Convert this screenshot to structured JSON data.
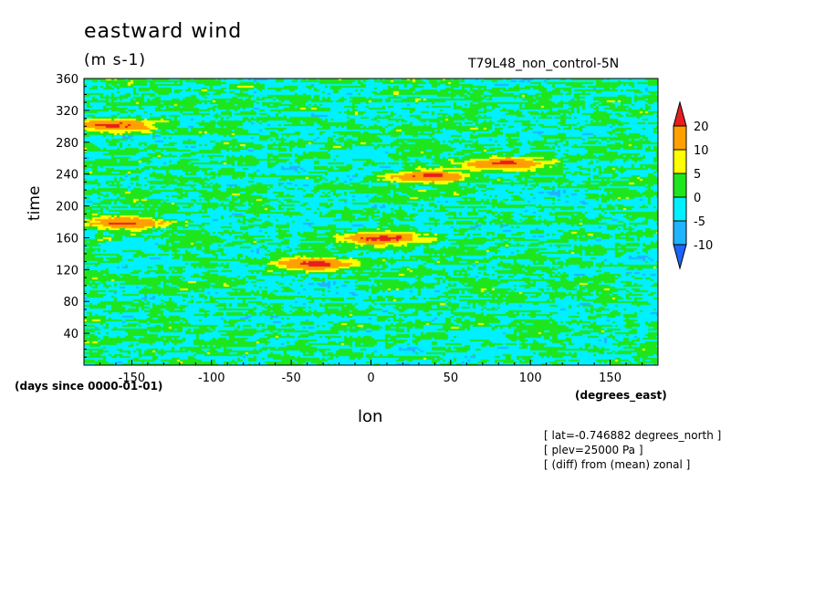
{
  "title": "eastward wind",
  "units": "(m s-1)",
  "run_label": "T79L48_non_control-5N",
  "notes": [
    "[ lat=-0.746882 degrees_north ]",
    "[ plev=25000 Pa ]",
    "[ (diff) from (mean) zonal ]"
  ],
  "chart_data": {
    "type": "heatmap",
    "title": "eastward wind",
    "subtitle": "(m s-1)",
    "xlabel": "lon",
    "x_units": "(degrees_east)",
    "ylabel": "time",
    "y_units": "(days since 0000-01-01)",
    "xlim": [
      -180,
      180
    ],
    "ylim": [
      0,
      360
    ],
    "x_ticks": [
      -150,
      -100,
      -50,
      0,
      50,
      100,
      150
    ],
    "x_tick_labels": [
      "-150",
      "-100",
      "-50",
      "0",
      "50",
      "100",
      "150"
    ],
    "y_ticks": [
      40,
      80,
      120,
      160,
      200,
      240,
      280,
      320,
      360
    ],
    "y_tick_labels": [
      "40",
      "80",
      "120",
      "160",
      "200",
      "240",
      "280",
      "320",
      "360"
    ],
    "colorbar": {
      "levels": [
        -10,
        -5,
        0,
        5,
        10,
        20
      ],
      "level_labels": [
        "-10",
        "-5",
        "0",
        "5",
        "10",
        "20"
      ],
      "colors": [
        "#1e64ff",
        "#1eb4ff",
        "#00f0ff",
        "#1ee61e",
        "#ffff00",
        "#ffa000",
        "#e61e1e"
      ],
      "extend": "both"
    },
    "description_values": {
      "dominant_range": [
        -10,
        10
      ],
      "strong_positive_bands": [
        {
          "lon": -155,
          "time": 180,
          "value": 20
        },
        {
          "lon": 5,
          "time": 160,
          "value": 20
        },
        {
          "lon": -35,
          "time": 128,
          "value": 20
        },
        {
          "lon": 35,
          "time": 238,
          "value": 20
        },
        {
          "lon": 80,
          "time": 255,
          "value": 20
        },
        {
          "lon": -160,
          "time": 302,
          "value": 20
        }
      ]
    }
  }
}
